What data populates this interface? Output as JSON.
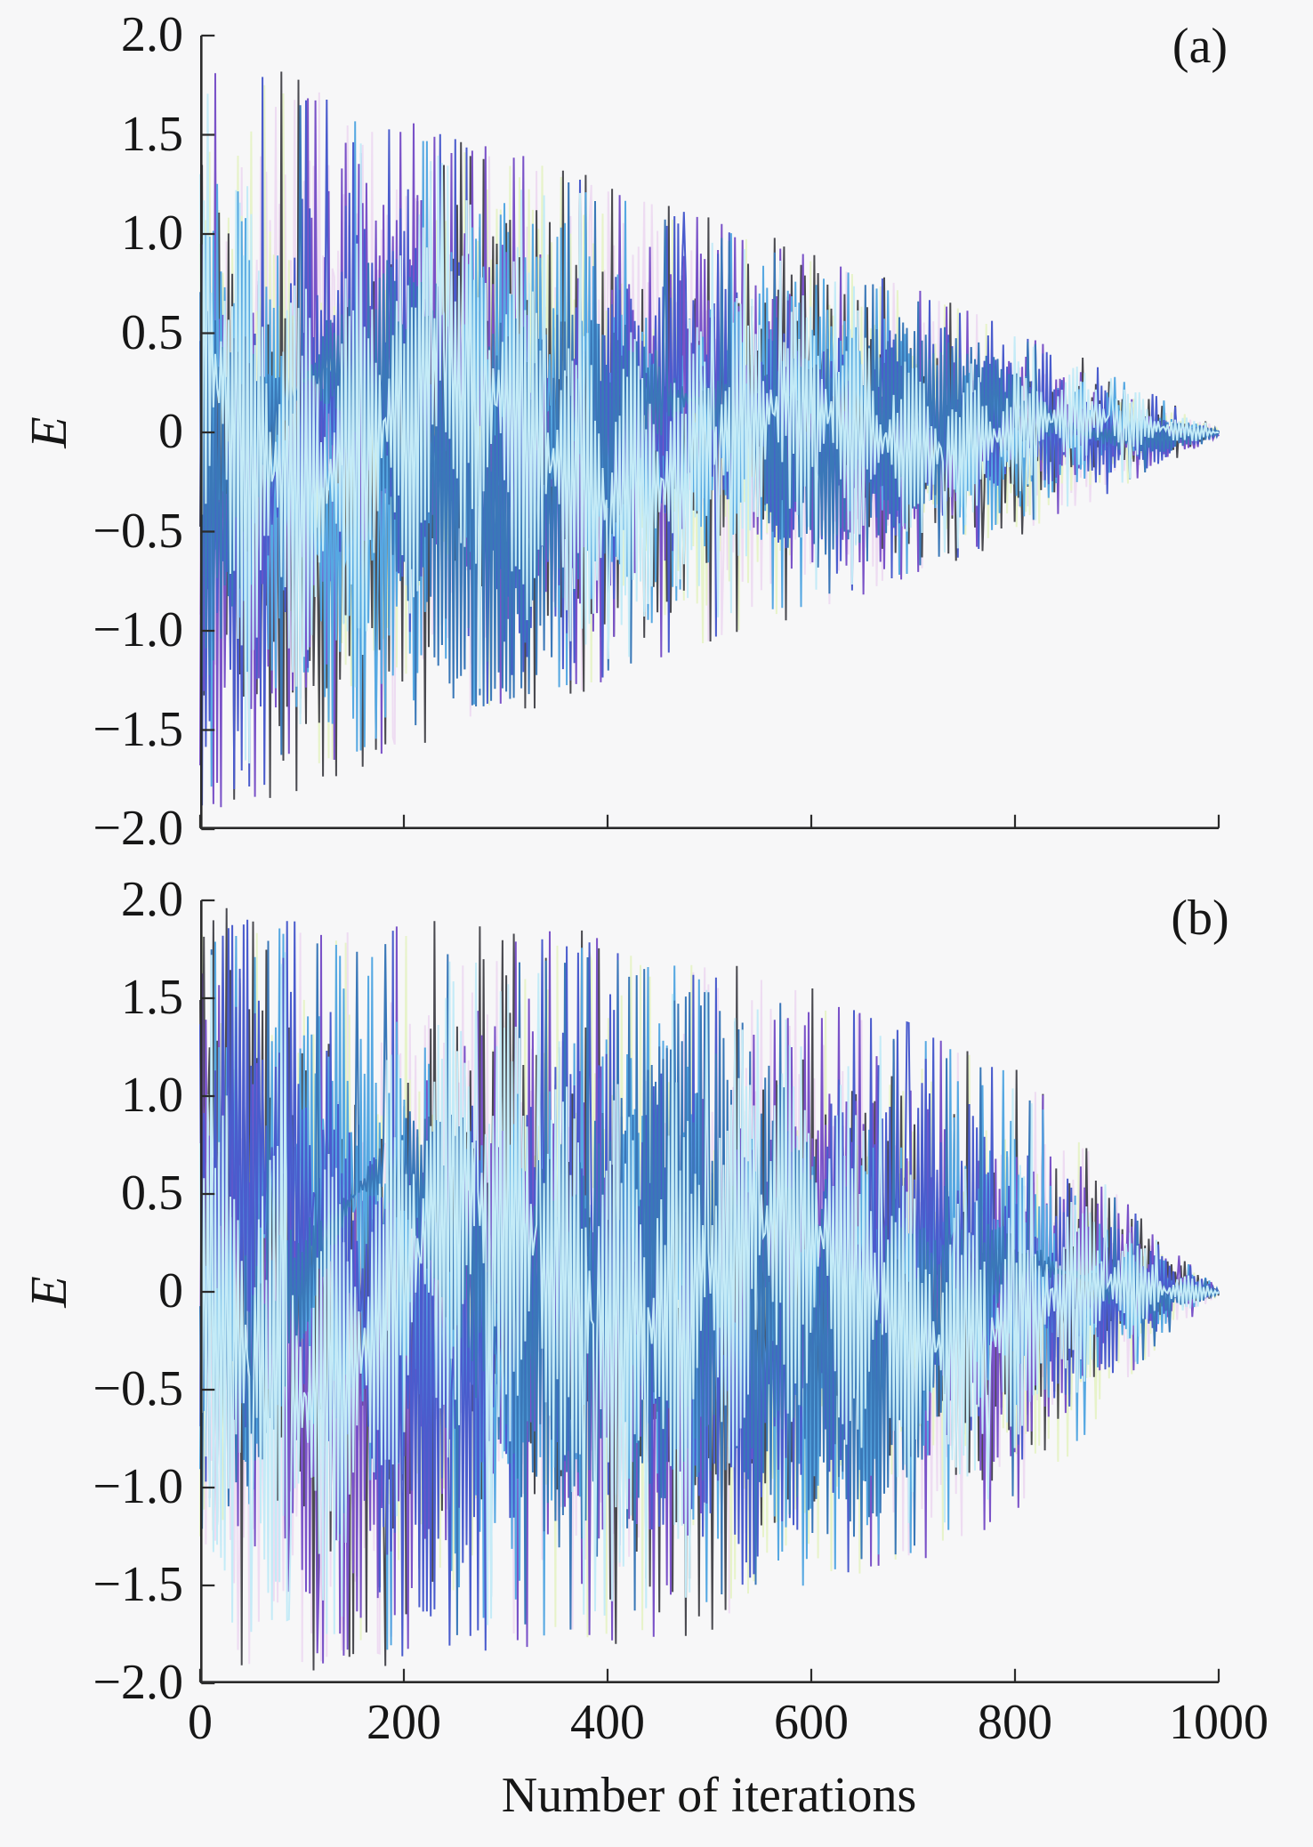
{
  "figure": {
    "background": "#f7f7f8",
    "axis_color": "#2b2b2b",
    "text_color": "#161616",
    "x_axis_title": "Number of iterations"
  },
  "chart_data": [
    {
      "type": "line",
      "title": "(a)",
      "xlabel": "",
      "ylabel": "E",
      "xlim": [
        0,
        1000
      ],
      "ylim": [
        -2.0,
        2.0
      ],
      "grid": false,
      "legend": "none",
      "x_ticks": [
        0,
        200,
        400,
        600,
        800,
        1000
      ],
      "x_tick_labels": [
        "0",
        "200",
        "400",
        "600",
        "800",
        "1000"
      ],
      "y_ticks": [
        2.0,
        1.5,
        1.0,
        0.5,
        0,
        -0.5,
        -1.0,
        -1.5,
        -2.0
      ],
      "y_tick_labels": [
        "2.0",
        "1.5",
        "1.0",
        "0.5",
        "0",
        "−0.5",
        "−1.0",
        "−1.5",
        "−2.0"
      ],
      "description": "Several overlaid zero-mean noisy error signals E versus iteration number; oscillation amplitude decays roughly linearly, converging to 0 near iteration 1000.",
      "n_points": 1000,
      "envelope": {
        "x": [
          0,
          50,
          100,
          150,
          200,
          250,
          300,
          350,
          400,
          450,
          500,
          550,
          600,
          650,
          700,
          750,
          800,
          850,
          900,
          950,
          1000
        ],
        "amplitude": [
          1.95,
          1.87,
          1.8,
          1.7,
          1.62,
          1.53,
          1.45,
          1.38,
          1.3,
          1.2,
          1.1,
          1.0,
          0.93,
          0.84,
          0.74,
          0.64,
          0.54,
          0.42,
          0.3,
          0.16,
          0.02
        ]
      },
      "series": [
        {
          "name": "pale-pink-line",
          "color": "#eedcf2",
          "scale": 0.97
        },
        {
          "name": "pale-green-line",
          "color": "#e7f3c9",
          "scale": 0.96
        },
        {
          "name": "dark-gray-line",
          "color": "#4a4a50",
          "scale": 1.0
        },
        {
          "name": "purple-line",
          "color": "#7a52c8",
          "scale": 0.985
        },
        {
          "name": "sky-blue-line",
          "color": "#56a8e2",
          "scale": 0.95
        },
        {
          "name": "royal-blue-line",
          "color": "#4a5ccd",
          "scale": 0.97
        },
        {
          "name": "steel-blue-line",
          "color": "#3a78b8",
          "scale": 0.93
        },
        {
          "name": "light-cyan-line",
          "color": "#c4ebf7",
          "scale": 0.9
        }
      ]
    },
    {
      "type": "line",
      "title": "(b)",
      "xlabel": "Number of iterations",
      "ylabel": "E",
      "xlim": [
        0,
        1000
      ],
      "ylim": [
        -2.0,
        2.0
      ],
      "grid": false,
      "legend": "none",
      "x_ticks": [
        0,
        200,
        400,
        600,
        800,
        1000
      ],
      "x_tick_labels": [
        "0",
        "200",
        "400",
        "600",
        "800",
        "1000"
      ],
      "y_ticks": [
        2.0,
        1.5,
        1.0,
        0.5,
        0,
        -0.5,
        -1.0,
        -1.5,
        -2.0
      ],
      "y_tick_labels": [
        "2.0",
        "1.5",
        "1.0",
        "0.5",
        "0",
        "−0.5",
        "−1.0",
        "−1.5",
        "−2.0"
      ],
      "description": "Same overlaid noisy error signals E versus iteration number; amplitude stays near the full range much longer, then decays and converges to 0 near iteration 1000.",
      "n_points": 1000,
      "envelope": {
        "x": [
          0,
          50,
          100,
          150,
          200,
          250,
          300,
          350,
          400,
          450,
          500,
          550,
          600,
          650,
          700,
          750,
          800,
          850,
          900,
          950,
          1000
        ],
        "amplitude": [
          1.96,
          1.96,
          1.95,
          1.94,
          1.93,
          1.91,
          1.89,
          1.87,
          1.84,
          1.79,
          1.73,
          1.66,
          1.58,
          1.5,
          1.42,
          1.3,
          1.16,
          0.92,
          0.52,
          0.24,
          0.02
        ]
      },
      "series": [
        {
          "name": "pale-pink-line",
          "color": "#eedcf2",
          "scale": 0.97
        },
        {
          "name": "pale-green-line",
          "color": "#e7f3c9",
          "scale": 0.96
        },
        {
          "name": "dark-gray-line",
          "color": "#4a4a50",
          "scale": 1.0
        },
        {
          "name": "purple-line",
          "color": "#7a52c8",
          "scale": 0.985
        },
        {
          "name": "sky-blue-line",
          "color": "#56a8e2",
          "scale": 0.95
        },
        {
          "name": "royal-blue-line",
          "color": "#4a5ccd",
          "scale": 0.97
        },
        {
          "name": "steel-blue-line",
          "color": "#3a78b8",
          "scale": 0.93
        },
        {
          "name": "light-cyan-line",
          "color": "#c4ebf7",
          "scale": 0.9
        }
      ]
    }
  ]
}
